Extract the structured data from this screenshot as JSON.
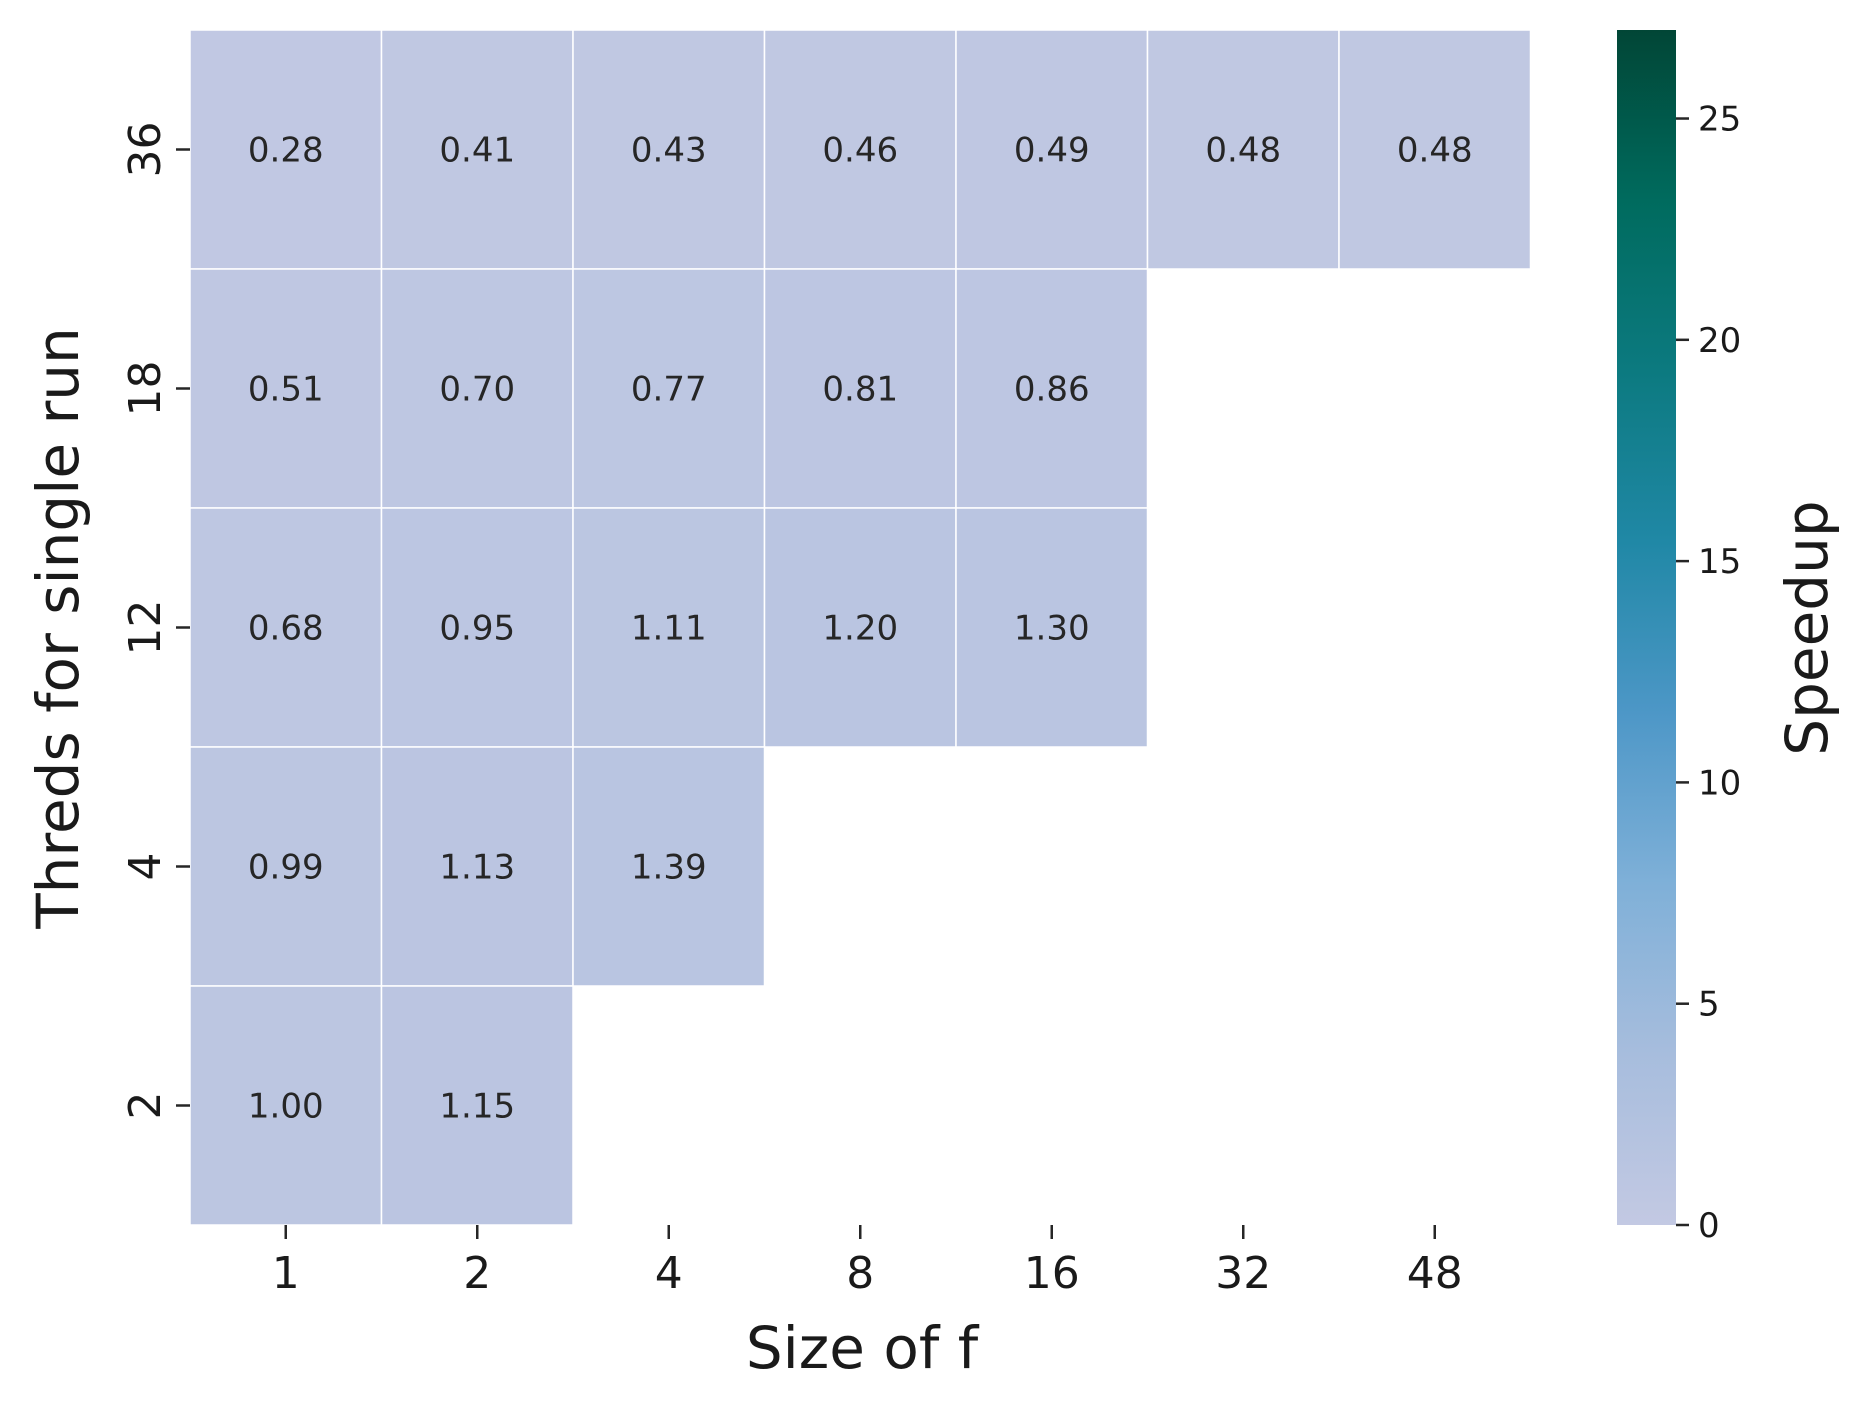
{
  "chart_data": {
    "type": "heatmap",
    "title": "",
    "xlabel": "Size of f",
    "ylabel": "Threds for single run",
    "x_categories": [
      "1",
      "2",
      "4",
      "8",
      "16",
      "32",
      "48"
    ],
    "y_categories": [
      "36",
      "18",
      "12",
      "4",
      "2"
    ],
    "values": [
      [
        0.28,
        0.41,
        0.43,
        0.46,
        0.49,
        0.48,
        0.48
      ],
      [
        0.51,
        0.7,
        0.77,
        0.81,
        0.86,
        null,
        null
      ],
      [
        0.68,
        0.95,
        1.11,
        1.2,
        1.3,
        null,
        null
      ],
      [
        0.99,
        1.13,
        1.39,
        null,
        null,
        null,
        null
      ],
      [
        1.0,
        1.15,
        null,
        null,
        null,
        null,
        null
      ]
    ],
    "colorbar": {
      "label": "Speedup",
      "range": [
        0,
        27
      ],
      "ticks": [
        0,
        5,
        10,
        15,
        20,
        25
      ],
      "colormap": "PuBuGn",
      "colors": [
        "#c3c9e3",
        "#a7bddd",
        "#7fb0d8",
        "#4d97c7",
        "#2088a6",
        "#0c7a80",
        "#006b5e",
        "#014636"
      ]
    },
    "grid": true,
    "legend": "colorbar-right"
  }
}
